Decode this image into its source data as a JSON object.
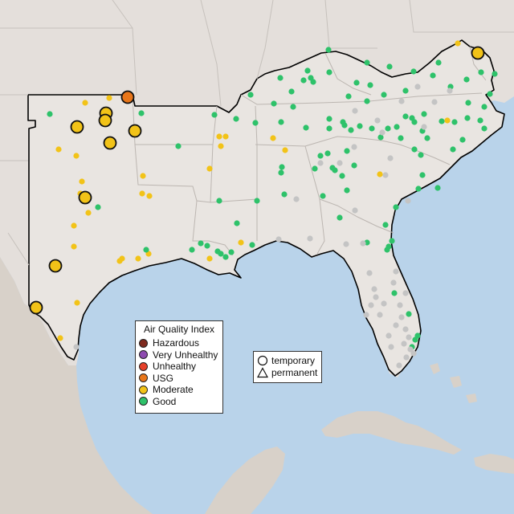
{
  "map": {
    "colors": {
      "water": "#b9d3ea",
      "land": "#e8e3df",
      "land_outside": "#ddd8d3",
      "mexico": "#d9d3cc",
      "state_border": "#b9b4b0",
      "region_outline": "#000000"
    },
    "aqi_levels": [
      {
        "key": "hazardous",
        "label": "Hazardous",
        "color": "#7e2a1e"
      },
      {
        "key": "very_unhealthy",
        "label": "Very Unhealthy",
        "color": "#8e4bb0"
      },
      {
        "key": "unhealthy",
        "label": "Unhealthy",
        "color": "#e5402a"
      },
      {
        "key": "usg",
        "label": "USG",
        "color": "#e8761a"
      },
      {
        "key": "moderate",
        "label": "Moderate",
        "color": "#f2c318"
      },
      {
        "key": "good",
        "label": "Good",
        "color": "#2ec26a"
      },
      {
        "key": "no_data",
        "label": "",
        "color": "#c4c4c4"
      }
    ],
    "legend_aqi": {
      "title": "Air Quality Index",
      "items": [
        "Hazardous",
        "Very Unhealthy",
        "Unhealthy",
        "USG",
        "Moderate",
        "Good"
      ]
    },
    "legend_type": {
      "temporary": "temporary",
      "permanent": "permanent"
    }
  }
}
